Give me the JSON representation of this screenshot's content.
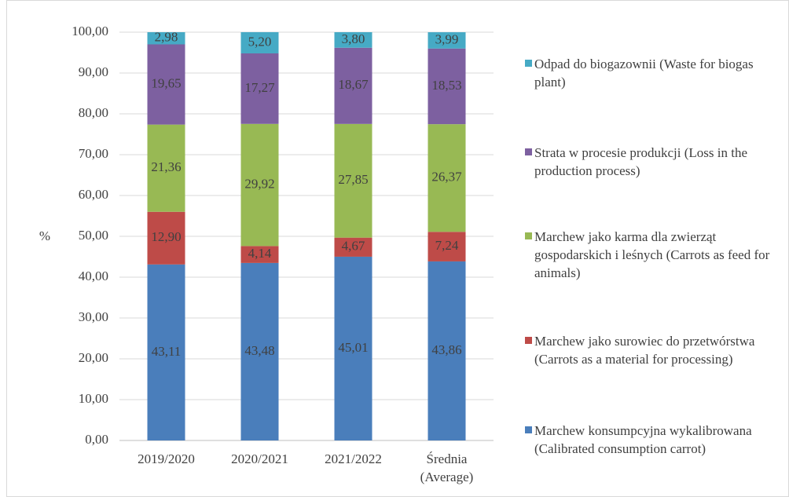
{
  "chart_data": {
    "type": "stacked_bar",
    "y_label": "%",
    "categories": [
      "2019/2020",
      "2020/2021",
      "2021/2022",
      "Średnia (Average)"
    ],
    "series": [
      {
        "name": "Marchew konsumpcyjna wykalibrowana (Calibrated consumption carrot)",
        "color": "#4a7ebb",
        "values": [
          43.11,
          43.48,
          45.01,
          43.86
        ],
        "value_labels": [
          "43,11",
          "43,48",
          "45,01",
          "43,86"
        ]
      },
      {
        "name": "Marchew jako surowiec do przetwórstwa (Carrots as a material for processing)",
        "color": "#be4b48",
        "values": [
          12.9,
          4.14,
          4.67,
          7.24
        ],
        "value_labels": [
          "12,90",
          "4,14",
          "4,67",
          "7,24"
        ]
      },
      {
        "name": "Marchew jako karma dla zwierząt gospodarskich i leśnych (Carrots as feed for animals)",
        "color": "#98b954",
        "values": [
          21.36,
          29.92,
          27.85,
          26.37
        ],
        "value_labels": [
          "21,36",
          "29,92",
          "27,85",
          "26,37"
        ]
      },
      {
        "name": "Strata w procesie produkcji (Loss in the production process)",
        "color": "#7d60a0",
        "values": [
          19.65,
          17.27,
          18.67,
          18.53
        ],
        "value_labels": [
          "19,65",
          "17,27",
          "18,67",
          "18,53"
        ]
      },
      {
        "name": "Odpad do biogazownii (Waste for biogas plant)",
        "color": "#46aac5",
        "values": [
          2.98,
          5.2,
          3.8,
          3.99
        ],
        "value_labels": [
          "2,98",
          "5,20",
          "3,80",
          "3,99"
        ]
      }
    ],
    "ylim": [
      0,
      100
    ],
    "yticks": [
      {
        "value": 0,
        "label": "0,00"
      },
      {
        "value": 10,
        "label": "10,00"
      },
      {
        "value": 20,
        "label": "20,00"
      },
      {
        "value": 30,
        "label": "30,00"
      },
      {
        "value": 40,
        "label": "40,00"
      },
      {
        "value": 50,
        "label": "50,00"
      },
      {
        "value": 60,
        "label": "60,00"
      },
      {
        "value": 70,
        "label": "70,00"
      },
      {
        "value": 80,
        "label": "80,00"
      },
      {
        "value": 90,
        "label": "90,00"
      },
      {
        "value": 100,
        "label": "100,00"
      }
    ],
    "grid": true,
    "legend": "right"
  }
}
